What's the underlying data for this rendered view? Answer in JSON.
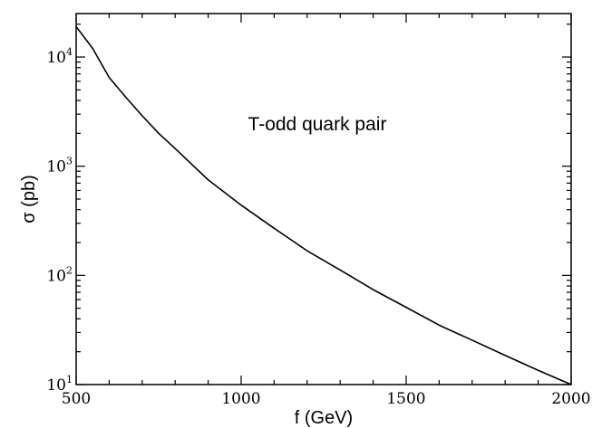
{
  "chart_data": {
    "type": "line",
    "annotation": "T-odd quark pair",
    "xlabel": "f (GeV)",
    "ylabel": "σ (pb)",
    "xlim": [
      500,
      2000
    ],
    "ylim": [
      10,
      25000
    ],
    "yscale": "log",
    "x_ticks": [
      500,
      1000,
      1500,
      2000
    ],
    "y_ticks": [
      {
        "value": 10,
        "base": "10",
        "exp": "1"
      },
      {
        "value": 100,
        "base": "10",
        "exp": "2"
      },
      {
        "value": 1000,
        "base": "10",
        "exp": "3"
      },
      {
        "value": 10000,
        "base": "10",
        "exp": "4"
      }
    ],
    "grid": false,
    "series": [
      {
        "x": [
          500,
          550,
          600,
          650,
          700,
          750,
          800,
          900,
          1000,
          1100,
          1200,
          1300,
          1400,
          1500,
          1600,
          1700,
          1800,
          1900,
          2000
        ],
        "y": [
          19000,
          12000,
          6500,
          4300,
          2900,
          2000,
          1450,
          750,
          440,
          270,
          168,
          112,
          74,
          51,
          35,
          25.5,
          18.5,
          13.5,
          10
        ]
      }
    ]
  }
}
